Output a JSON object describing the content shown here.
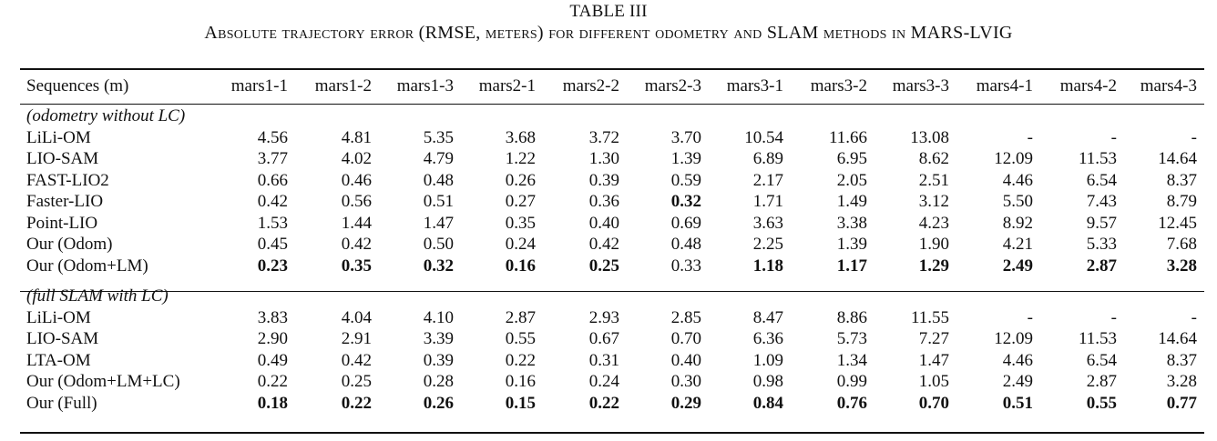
{
  "caption": {
    "label": "TABLE III",
    "title": "Absolute trajectory error (RMSE, meters) for different odometry and SLAM methods in MARS-LVIG"
  },
  "table": {
    "columns": [
      "Sequences (m)",
      "mars1-1",
      "mars1-2",
      "mars1-3",
      "mars2-1",
      "mars2-2",
      "mars2-3",
      "mars3-1",
      "mars3-2",
      "mars3-3",
      "mars4-1",
      "mars4-2",
      "mars4-3"
    ],
    "sections": [
      {
        "label": "(odometry without LC)",
        "rows": [
          {
            "name": "LiLi-OM",
            "values": [
              "4.56",
              "4.81",
              "5.35",
              "3.68",
              "3.72",
              "3.70",
              "10.54",
              "11.66",
              "13.08",
              "-",
              "-",
              "-"
            ],
            "bold": []
          },
          {
            "name": "LIO-SAM",
            "values": [
              "3.77",
              "4.02",
              "4.79",
              "1.22",
              "1.30",
              "1.39",
              "6.89",
              "6.95",
              "8.62",
              "12.09",
              "11.53",
              "14.64"
            ],
            "bold": []
          },
          {
            "name": "FAST-LIO2",
            "values": [
              "0.66",
              "0.46",
              "0.48",
              "0.26",
              "0.39",
              "0.59",
              "2.17",
              "2.05",
              "2.51",
              "4.46",
              "6.54",
              "8.37"
            ],
            "bold": []
          },
          {
            "name": "Faster-LIO",
            "values": [
              "0.42",
              "0.56",
              "0.51",
              "0.27",
              "0.36",
              "0.32",
              "1.71",
              "1.49",
              "3.12",
              "5.50",
              "7.43",
              "8.79"
            ],
            "bold": [
              5
            ]
          },
          {
            "name": "Point-LIO",
            "values": [
              "1.53",
              "1.44",
              "1.47",
              "0.35",
              "0.40",
              "0.69",
              "3.63",
              "3.38",
              "4.23",
              "8.92",
              "9.57",
              "12.45"
            ],
            "bold": []
          },
          {
            "name": "Our (Odom)",
            "values": [
              "0.45",
              "0.42",
              "0.50",
              "0.24",
              "0.42",
              "0.48",
              "2.25",
              "1.39",
              "1.90",
              "4.21",
              "5.33",
              "7.68"
            ],
            "bold": []
          },
          {
            "name": "Our (Odom+LM)",
            "values": [
              "0.23",
              "0.35",
              "0.32",
              "0.16",
              "0.25",
              "0.33",
              "1.18",
              "1.17",
              "1.29",
              "2.49",
              "2.87",
              "3.28"
            ],
            "bold": [
              0,
              1,
              2,
              3,
              4,
              6,
              7,
              8,
              9,
              10,
              11
            ]
          }
        ]
      },
      {
        "label": "(full SLAM with LC)",
        "rows": [
          {
            "name": "LiLi-OM",
            "values": [
              "3.83",
              "4.04",
              "4.10",
              "2.87",
              "2.93",
              "2.85",
              "8.47",
              "8.86",
              "11.55",
              "-",
              "-",
              "-"
            ],
            "bold": []
          },
          {
            "name": "LIO-SAM",
            "values": [
              "2.90",
              "2.91",
              "3.39",
              "0.55",
              "0.67",
              "0.70",
              "6.36",
              "5.73",
              "7.27",
              "12.09",
              "11.53",
              "14.64"
            ],
            "bold": []
          },
          {
            "name": "LTA-OM",
            "values": [
              "0.49",
              "0.42",
              "0.39",
              "0.22",
              "0.31",
              "0.40",
              "1.09",
              "1.34",
              "1.47",
              "4.46",
              "6.54",
              "8.37"
            ],
            "bold": []
          },
          {
            "name": "Our (Odom+LM+LC)",
            "values": [
              "0.22",
              "0.25",
              "0.28",
              "0.16",
              "0.24",
              "0.30",
              "0.98",
              "0.99",
              "1.05",
              "2.49",
              "2.87",
              "3.28"
            ],
            "bold": []
          },
          {
            "name": "Our (Full)",
            "values": [
              "0.18",
              "0.22",
              "0.26",
              "0.15",
              "0.22",
              "0.29",
              "0.84",
              "0.76",
              "0.70",
              "0.51",
              "0.55",
              "0.77"
            ],
            "bold": [
              0,
              1,
              2,
              3,
              4,
              5,
              6,
              7,
              8,
              9,
              10,
              11
            ]
          }
        ]
      }
    ]
  }
}
